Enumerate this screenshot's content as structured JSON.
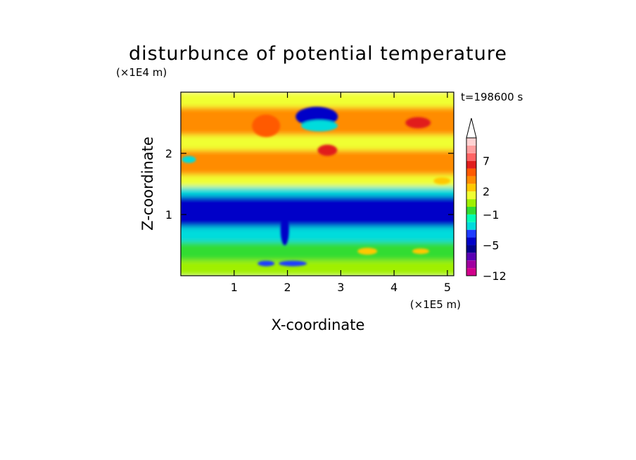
{
  "chart_data": {
    "type": "heatmap",
    "title": "disturbunce of potential temperature",
    "xlabel": "X-coordinate",
    "ylabel": "Z-coordinate",
    "x_unit": "(×1E5 m)",
    "y_unit": "(×1E4 m)",
    "time_label": "t=198600 s",
    "xlim": [
      0,
      5.12
    ],
    "ylim": [
      0,
      3.0
    ],
    "x_ticks": [
      1,
      2,
      3,
      4,
      5
    ],
    "x_tick_labels": [
      "1",
      "2",
      "3",
      "4",
      "5"
    ],
    "y_ticks": [
      1,
      2
    ],
    "y_tick_labels": [
      "1",
      "2"
    ],
    "colorbar": {
      "levels": [
        -12,
        -10,
        -8,
        -6,
        -5,
        -4,
        -3,
        -2,
        -1,
        0,
        1,
        2,
        3,
        4,
        5,
        7,
        8,
        9,
        11
      ],
      "colors": [
        "#ff00c8",
        "#d2008c",
        "#a000a0",
        "#5a00b4",
        "#00008c",
        "#0000c8",
        "#1e3cff",
        "#00dcdc",
        "#00ffb4",
        "#32dc32",
        "#a0f000",
        "#f0ff32",
        "#ffc800",
        "#ff8c00",
        "#ff5a00",
        "#e11e1e",
        "#ff6464",
        "#ffa0a0",
        "#ffd2d2",
        "#ffffff"
      ],
      "tick_values": [
        -12,
        -5,
        -1,
        2,
        7
      ],
      "tick_labels": [
        "−12",
        "−5",
        "−1",
        "2",
        "7"
      ],
      "extend": "max"
    },
    "field_bands": [
      {
        "z": [
          0.0,
          0.25
        ],
        "value": 0.5
      },
      {
        "z": [
          0.25,
          0.55
        ],
        "value": -0.5
      },
      {
        "z": [
          0.55,
          0.8
        ],
        "value": -2.5
      },
      {
        "z": [
          0.8,
          1.3
        ],
        "value": -4.5
      },
      {
        "z": [
          1.3,
          1.45
        ],
        "value": -2.5
      },
      {
        "z": [
          1.45,
          1.65
        ],
        "value": 1.5
      },
      {
        "z": [
          1.65,
          2.05
        ],
        "value": 3.5
      },
      {
        "z": [
          2.05,
          2.3
        ],
        "value": 1.5
      },
      {
        "z": [
          2.3,
          2.75
        ],
        "value": 3.5
      },
      {
        "z": [
          2.75,
          3.0
        ],
        "value": 1.5
      }
    ],
    "features": [
      {
        "x": 2.55,
        "z": 2.6,
        "value": -4.5
      },
      {
        "x": 2.6,
        "z": 2.45,
        "value": -2.5
      },
      {
        "x": 2.75,
        "z": 2.05,
        "value": 6.0
      },
      {
        "x": 4.45,
        "z": 2.5,
        "value": 6.0
      },
      {
        "x": 1.6,
        "z": 2.45,
        "value": 4.5
      },
      {
        "x": 0.15,
        "z": 1.9,
        "value": -2.5
      },
      {
        "x": 1.95,
        "z": 0.75,
        "value": -4.5
      },
      {
        "x": 2.1,
        "z": 0.2,
        "value": -3.5
      },
      {
        "x": 1.6,
        "z": 0.2,
        "value": -3.5
      },
      {
        "x": 3.5,
        "z": 0.4,
        "value": 2.5
      },
      {
        "x": 4.5,
        "z": 0.4,
        "value": 2.5
      },
      {
        "x": 4.9,
        "z": 1.55,
        "value": 2.5
      }
    ]
  }
}
